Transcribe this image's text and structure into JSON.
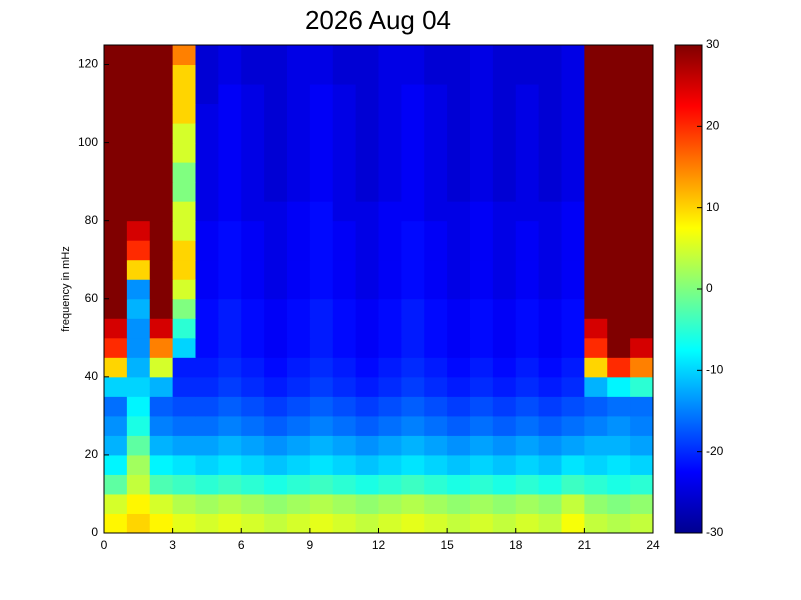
{
  "chart_data": {
    "type": "heatmap",
    "title": "2026 Aug 04",
    "ylabel": "frequency in mHz",
    "colormap": "jet",
    "xlim": [
      0,
      24
    ],
    "xticks": [
      0,
      3,
      6,
      9,
      12,
      15,
      18,
      21,
      24
    ],
    "ylim": [
      0,
      125
    ],
    "yticks": [
      0,
      20,
      40,
      60,
      80,
      100,
      120
    ],
    "colorbar": {
      "lim": [
        -30,
        30
      ],
      "ticks": [
        -30,
        -20,
        -10,
        0,
        10,
        20,
        30
      ]
    },
    "x": [
      0.5,
      1.5,
      2.5,
      3.5,
      4.5,
      5.5,
      6.5,
      7.5,
      8.5,
      9.5,
      10.5,
      11.5,
      12.5,
      13.5,
      14.5,
      15.5,
      16.5,
      17.5,
      18.5,
      19.5,
      20.5,
      21.5,
      22.5,
      23.5
    ],
    "y": [
      2.5,
      7.5,
      12.5,
      17.5,
      22.5,
      27.5,
      32.5,
      37.5,
      42.5,
      47.5,
      52.5,
      57.5,
      62.5,
      67.5,
      72.5,
      77.5,
      82.5,
      87.5,
      92.5,
      97.5,
      102.5,
      107.5,
      112.5,
      117.5,
      122.5
    ],
    "values": [
      [
        8,
        10,
        8,
        6,
        5,
        6,
        5,
        4,
        5,
        6,
        5,
        4,
        5,
        6,
        5,
        4,
        5,
        4,
        5,
        4,
        7,
        4,
        3,
        4
      ],
      [
        5,
        8,
        5,
        3,
        2,
        3,
        2,
        1,
        2,
        3,
        2,
        1,
        2,
        3,
        2,
        1,
        2,
        1,
        2,
        1,
        4,
        1,
        0,
        1
      ],
      [
        -2,
        4,
        -3,
        -4,
        -5,
        -4,
        -5,
        -6,
        -5,
        -4,
        -5,
        -6,
        -5,
        -4,
        -5,
        -6,
        -5,
        -6,
        -5,
        -6,
        -4,
        -5,
        -6,
        -5
      ],
      [
        -8,
        2,
        -8,
        -9,
        -10,
        -9,
        -10,
        -11,
        -10,
        -9,
        -10,
        -11,
        -10,
        -9,
        -10,
        -11,
        -10,
        -11,
        -10,
        -11,
        -9,
        -10,
        -9,
        -10
      ],
      [
        -12,
        -2,
        -12,
        -13,
        -13,
        -12,
        -13,
        -14,
        -13,
        -12,
        -13,
        -14,
        -13,
        -12,
        -13,
        -14,
        -13,
        -14,
        -13,
        -14,
        -13,
        -12,
        -12,
        -13
      ],
      [
        -14,
        -6,
        -15,
        -16,
        -16,
        -15,
        -16,
        -17,
        -16,
        -15,
        -16,
        -17,
        -16,
        -15,
        -16,
        -17,
        -16,
        -17,
        -16,
        -17,
        -16,
        -15,
        -14,
        -15
      ],
      [
        -16,
        -8,
        -17,
        -18,
        -18,
        -17,
        -18,
        -19,
        -18,
        -17,
        -18,
        -19,
        -18,
        -17,
        -18,
        -19,
        -18,
        -19,
        -18,
        -19,
        -18,
        -17,
        -16,
        -16
      ],
      [
        -10,
        -10,
        -12,
        -20,
        -20,
        -19,
        -20,
        -21,
        -20,
        -19,
        -20,
        -21,
        -20,
        -19,
        -20,
        -21,
        -20,
        -21,
        -20,
        -21,
        -20,
        -12,
        -8,
        -5
      ],
      [
        10,
        -12,
        5,
        -21,
        -21,
        -20,
        -21,
        -22,
        -21,
        -20,
        -21,
        -22,
        -21,
        -20,
        -21,
        -22,
        -21,
        -22,
        -21,
        -22,
        -21,
        10,
        20,
        15
      ],
      [
        20,
        -14,
        15,
        -10,
        -22,
        -21,
        -22,
        -23,
        -22,
        -21,
        -22,
        -23,
        -22,
        -21,
        -22,
        -23,
        -22,
        -23,
        -22,
        -23,
        -22,
        20,
        30,
        25
      ],
      [
        25,
        -14,
        25,
        -5,
        -22,
        -21,
        -22,
        -23,
        -22,
        -21,
        -22,
        -23,
        -22,
        -21,
        -22,
        -23,
        -22,
        -23,
        -22,
        -23,
        -22,
        25,
        30,
        30
      ],
      [
        30,
        -12,
        30,
        0,
        -22,
        -21,
        -22,
        -23,
        -22,
        -21,
        -22,
        -23,
        -22,
        -21,
        -22,
        -23,
        -22,
        -23,
        -22,
        -23,
        -22,
        30,
        30,
        30
      ],
      [
        30,
        -14,
        30,
        5,
        -23,
        -22,
        -23,
        -24,
        -23,
        -22,
        -23,
        -24,
        -23,
        -22,
        -23,
        -24,
        -23,
        -24,
        -23,
        -24,
        -23,
        30,
        30,
        30
      ],
      [
        30,
        10,
        30,
        10,
        -23,
        -22,
        -23,
        -24,
        -23,
        -22,
        -23,
        -24,
        -23,
        -22,
        -23,
        -24,
        -23,
        -24,
        -23,
        -24,
        -23,
        30,
        30,
        30
      ],
      [
        30,
        20,
        30,
        10,
        -23,
        -22,
        -23,
        -24,
        -23,
        -22,
        -23,
        -24,
        -23,
        -22,
        -23,
        -24,
        -23,
        -24,
        -23,
        -24,
        -23,
        30,
        30,
        30
      ],
      [
        30,
        25,
        30,
        5,
        -23,
        -22,
        -23,
        -24,
        -23,
        -22,
        -23,
        -24,
        -23,
        -22,
        -23,
        -24,
        -23,
        -24,
        -23,
        -24,
        -23,
        30,
        30,
        30
      ],
      [
        30,
        30,
        30,
        5,
        -24,
        -23,
        -24,
        -24,
        -23,
        -22,
        -24,
        -24,
        -23,
        -23,
        -24,
        -24,
        -23,
        -24,
        -24,
        -24,
        -23,
        30,
        30,
        30
      ],
      [
        30,
        30,
        30,
        0,
        -24,
        -23,
        -24,
        -25,
        -24,
        -23,
        -24,
        -25,
        -24,
        -23,
        -24,
        -25,
        -24,
        -25,
        -24,
        -25,
        -24,
        30,
        30,
        30
      ],
      [
        30,
        30,
        30,
        0,
        -24,
        -23,
        -24,
        -25,
        -24,
        -23,
        -24,
        -25,
        -24,
        -23,
        -24,
        -25,
        -24,
        -25,
        -24,
        -25,
        -24,
        30,
        30,
        30
      ],
      [
        30,
        30,
        30,
        5,
        -24,
        -23,
        -24,
        -25,
        -24,
        -23,
        -24,
        -25,
        -24,
        -23,
        -24,
        -25,
        -24,
        -25,
        -24,
        -25,
        -24,
        30,
        30,
        30
      ],
      [
        30,
        30,
        30,
        5,
        -24,
        -23,
        -24,
        -25,
        -24,
        -23,
        -24,
        -25,
        -24,
        -23,
        -24,
        -25,
        -24,
        -25,
        -24,
        -25,
        -24,
        30,
        30,
        30
      ],
      [
        30,
        30,
        30,
        10,
        -24,
        -23,
        -24,
        -25,
        -24,
        -23,
        -24,
        -25,
        -24,
        -23,
        -24,
        -25,
        -24,
        -25,
        -24,
        -25,
        -24,
        30,
        30,
        30
      ],
      [
        30,
        30,
        30,
        10,
        -25,
        -23,
        -24,
        -25,
        -24,
        -23,
        -24,
        -25,
        -24,
        -23,
        -24,
        -25,
        -24,
        -25,
        -24,
        -25,
        -24,
        30,
        30,
        30
      ],
      [
        30,
        30,
        30,
        10,
        -25,
        -24,
        -25,
        -25,
        -24,
        -24,
        -25,
        -25,
        -24,
        -24,
        -25,
        -25,
        -24,
        -25,
        -25,
        -25,
        -24,
        30,
        30,
        30
      ],
      [
        30,
        30,
        30,
        15,
        -25,
        -24,
        -25,
        -25,
        -24,
        -24,
        -25,
        -25,
        -24,
        -24,
        -25,
        -25,
        -24,
        -25,
        -25,
        -25,
        -24,
        30,
        30,
        30
      ]
    ]
  }
}
